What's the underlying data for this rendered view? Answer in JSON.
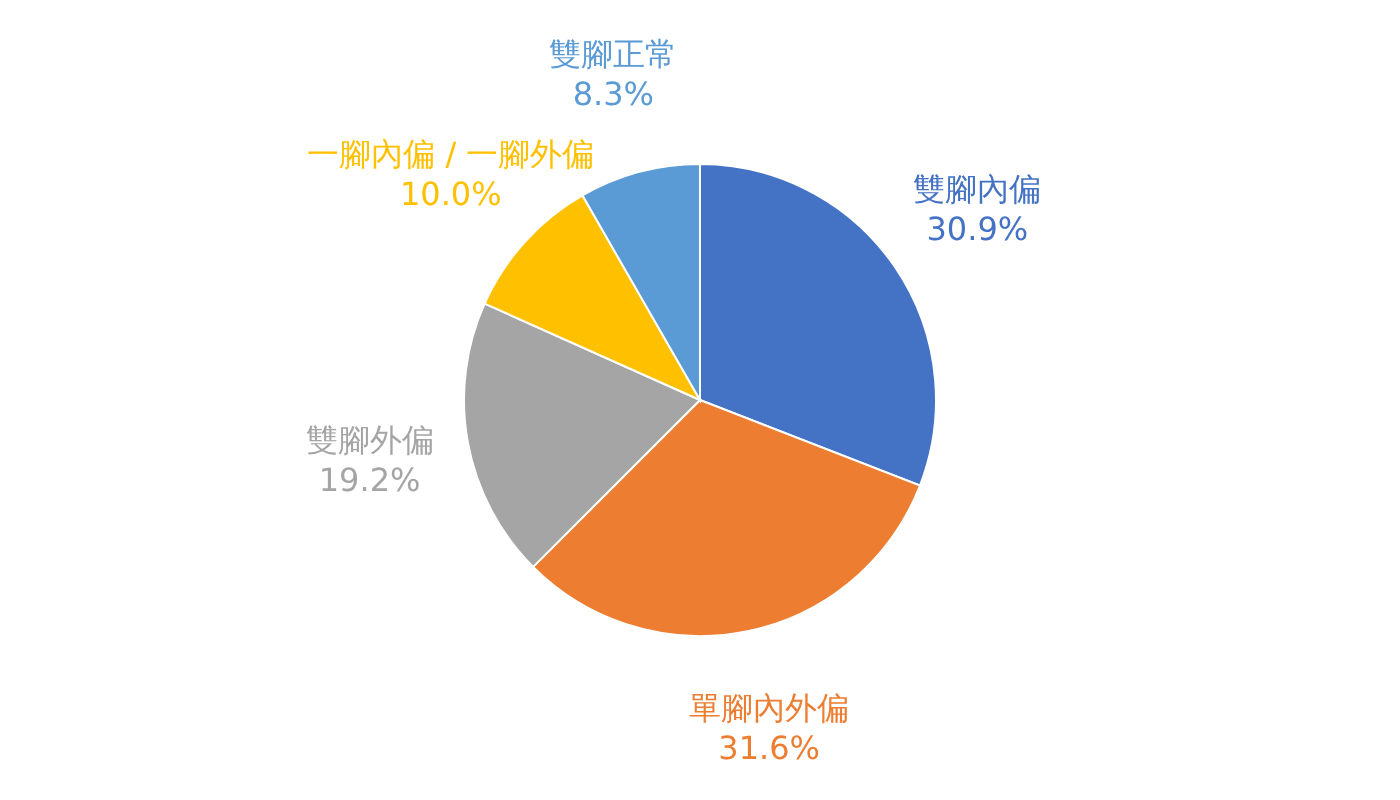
{
  "chart_data": {
    "type": "pie",
    "categories": [
      "雙腳內偏",
      "單腳內外偏",
      "雙腳外偏",
      "一腳內偏 / 一腳外偏",
      "雙腳正常"
    ],
    "values": [
      30.9,
      31.6,
      19.2,
      10.0,
      8.3
    ],
    "colors": [
      "#4472c4",
      "#ed7d31",
      "#a5a5a5",
      "#ffc000",
      "#5b9bd5"
    ],
    "value_labels": [
      "30.9%",
      "31.6%",
      "19.2%",
      "10.0%",
      "8.3%"
    ],
    "legend": false
  }
}
